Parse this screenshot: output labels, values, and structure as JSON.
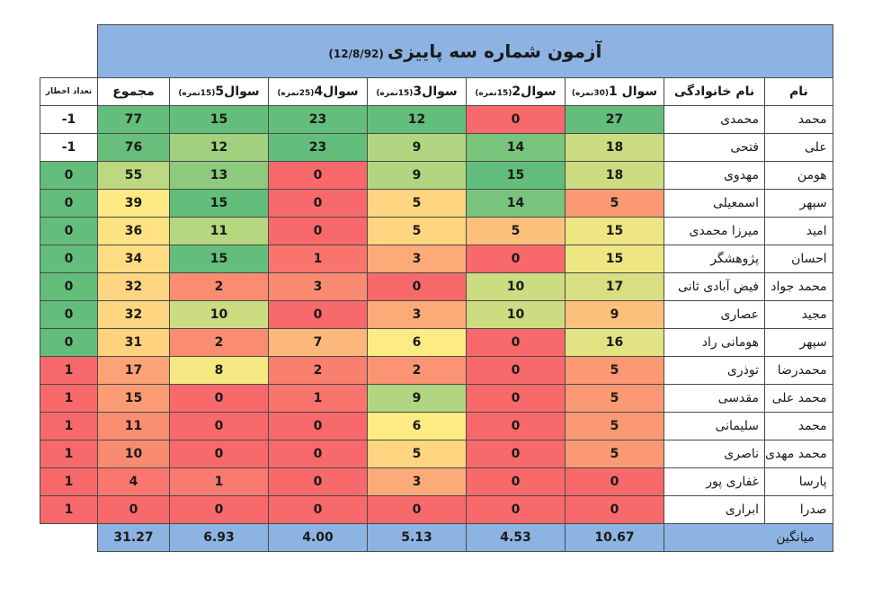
{
  "title": {
    "main": "آزمون شماره سه پاییزی",
    "date": "(12/8/92)"
  },
  "headers": {
    "first_name": "نام",
    "last_name": "نام خانوادگی",
    "questions": [
      {
        "label": "سوال 1",
        "points": "(30نمره)"
      },
      {
        "label": "سوال2",
        "points": "(15نمره)"
      },
      {
        "label": "سوال3",
        "points": "(15نمره)"
      },
      {
        "label": "سوال4",
        "points": "(25نمره)"
      },
      {
        "label": "سوال5",
        "points": "(15نمره)"
      }
    ],
    "total": "مجموع",
    "warnings": "تعداد اخطار"
  },
  "rows": [
    {
      "first": "محمد",
      "last": "محمدی",
      "scores": [
        "27",
        "0",
        "12",
        "23",
        "15"
      ],
      "total": "77",
      "warnings": "1-"
    },
    {
      "first": "علی",
      "last": "فتحی",
      "scores": [
        "18",
        "14",
        "9",
        "23",
        "12"
      ],
      "total": "76",
      "warnings": "1-"
    },
    {
      "first": "هومن",
      "last": "مهدوی",
      "scores": [
        "18",
        "15",
        "9",
        "0",
        "13"
      ],
      "total": "55",
      "warnings": "0"
    },
    {
      "first": "سپهر",
      "last": "اسمعیلی",
      "scores": [
        "5",
        "14",
        "5",
        "0",
        "15"
      ],
      "total": "39",
      "warnings": "0"
    },
    {
      "first": "امید",
      "last": "میرزا محمدی",
      "scores": [
        "15",
        "5",
        "5",
        "0",
        "11"
      ],
      "total": "36",
      "warnings": "0"
    },
    {
      "first": "احسان",
      "last": "پژوهشگر",
      "scores": [
        "15",
        "0",
        "3",
        "1",
        "15"
      ],
      "total": "34",
      "warnings": "0"
    },
    {
      "first": "محمد جواد",
      "last": "فیض آبادی ثانی",
      "scores": [
        "17",
        "10",
        "0",
        "3",
        "2"
      ],
      "total": "32",
      "warnings": "0"
    },
    {
      "first": "مجید",
      "last": "عصاری",
      "scores": [
        "9",
        "10",
        "3",
        "0",
        "10"
      ],
      "total": "32",
      "warnings": "0"
    },
    {
      "first": "سپهر",
      "last": "هومانی راد",
      "scores": [
        "16",
        "0",
        "6",
        "7",
        "2"
      ],
      "total": "31",
      "warnings": "0"
    },
    {
      "first": "محمدرضا",
      "last": "توذری",
      "scores": [
        "5",
        "0",
        "2",
        "2",
        "8"
      ],
      "total": "17",
      "warnings": "1"
    },
    {
      "first": "محمد علی",
      "last": "مقدسی",
      "scores": [
        "5",
        "0",
        "9",
        "1",
        "0"
      ],
      "total": "15",
      "warnings": "1"
    },
    {
      "first": "محمد",
      "last": "سلیمانی",
      "scores": [
        "5",
        "0",
        "6",
        "0",
        "0"
      ],
      "total": "11",
      "warnings": "1"
    },
    {
      "first": "محمد مهدی",
      "last": "ناصری",
      "scores": [
        "5",
        "0",
        "5",
        "0",
        "0"
      ],
      "total": "10",
      "warnings": "1"
    },
    {
      "first": "پارسا",
      "last": "غفاری پور",
      "scores": [
        "0",
        "0",
        "3",
        "0",
        "1"
      ],
      "total": "4",
      "warnings": "1"
    },
    {
      "first": "صدرا",
      "last": "ابراری",
      "scores": [
        "0",
        "0",
        "0",
        "0",
        "0"
      ],
      "total": "0",
      "warnings": "1"
    }
  ],
  "average": {
    "label": "میانگین",
    "values": [
      "10.67",
      "4.53",
      "5.13",
      "4.00",
      "6.93"
    ],
    "total": "31.27"
  },
  "colors": {
    "header_blue": "#8db3e2",
    "scale_low": "#f8696b",
    "scale_mid": "#ffeb84",
    "scale_high": "#63be7b"
  }
}
